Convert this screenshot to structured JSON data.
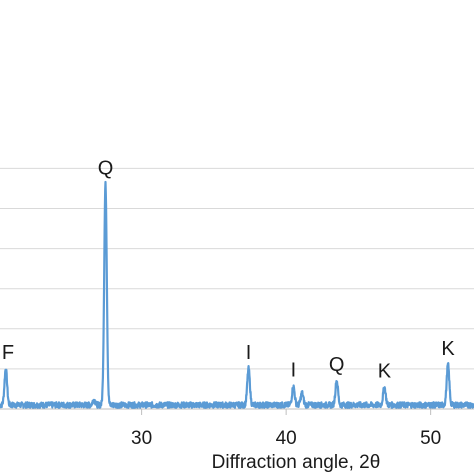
{
  "chart_data": {
    "type": "line",
    "title": "",
    "xlabel": "Diffraction angle, 2θ",
    "ylabel": "",
    "xlim": [
      20.2,
      53
    ],
    "ylim": [
      0,
      100
    ],
    "grid": true,
    "legend": "none",
    "line_color": "#5b9bd5",
    "grid_color": "#d9d9d9",
    "x_ticks": [
      {
        "value": 30,
        "label": "30"
      },
      {
        "value": 40,
        "label": "40"
      },
      {
        "value": 50,
        "label": "50"
      }
    ],
    "y_gridlines": [
      10,
      20,
      30,
      40,
      50,
      60
    ],
    "baseline": 1.0,
    "peaks": [
      {
        "x": 20.6,
        "y": 10.0,
        "label": "F"
      },
      {
        "x": 26.7,
        "y": 2.3
      },
      {
        "x": 27.5,
        "y": 56.0,
        "label": "Q"
      },
      {
        "x": 37.4,
        "y": 10.0,
        "label": "I"
      },
      {
        "x": 40.5,
        "y": 5.6,
        "label": "I"
      },
      {
        "x": 41.1,
        "y": 4.0
      },
      {
        "x": 43.5,
        "y": 7.0,
        "label": "Q"
      },
      {
        "x": 46.8,
        "y": 5.4,
        "label": "K"
      },
      {
        "x": 51.2,
        "y": 11.0,
        "label": "K"
      }
    ]
  }
}
